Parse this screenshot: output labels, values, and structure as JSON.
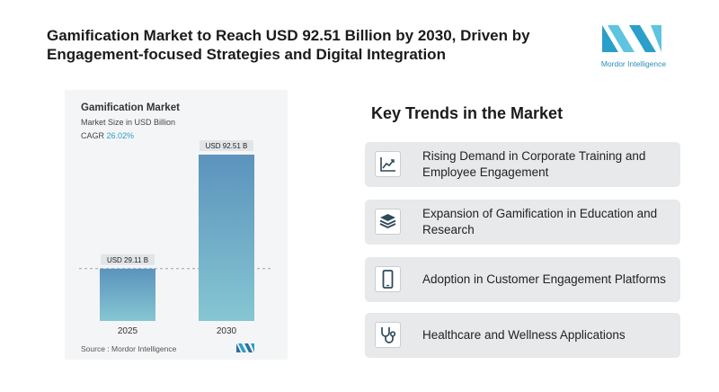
{
  "headline": "Gamification Market to Reach USD 92.51 Billion by 2030, Driven by Engagement-focused Strategies and Digital Integration",
  "brand": {
    "name": "Mordor Intelligence",
    "colors": {
      "primary": "#2a9fc9",
      "secondary": "#5ec4e0"
    }
  },
  "chart_data": {
    "type": "bar",
    "title": "Gamification Market",
    "subtitle": "Market Size in USD Billion",
    "cagr_label": "CAGR ",
    "cagr_value": "26.02%",
    "categories": [
      "2025",
      "2030"
    ],
    "values": [
      29.11,
      92.51
    ],
    "value_labels": [
      "USD 29.11 B",
      "USD 92.51 B"
    ],
    "ylim": [
      0,
      100
    ],
    "grid": false,
    "reference_line": "dashed line at 2025 value",
    "bar_colors": {
      "top": "#5b93bd",
      "bottom": "#86c6d2"
    },
    "source": "Source : Mordor Intelligence"
  },
  "trends": {
    "title": "Key Trends in the Market",
    "items": [
      {
        "label": "Rising Demand in Corporate Training and Employee Engagement",
        "icon": "line-chart-icon"
      },
      {
        "label": "Expansion of Gamification in Education and Research",
        "icon": "layers-stack-icon"
      },
      {
        "label": "Adoption in Customer Engagement Platforms",
        "icon": "smartphone-icon"
      },
      {
        "label": "Healthcare and Wellness Applications",
        "icon": "stethoscope-icon"
      }
    ]
  }
}
